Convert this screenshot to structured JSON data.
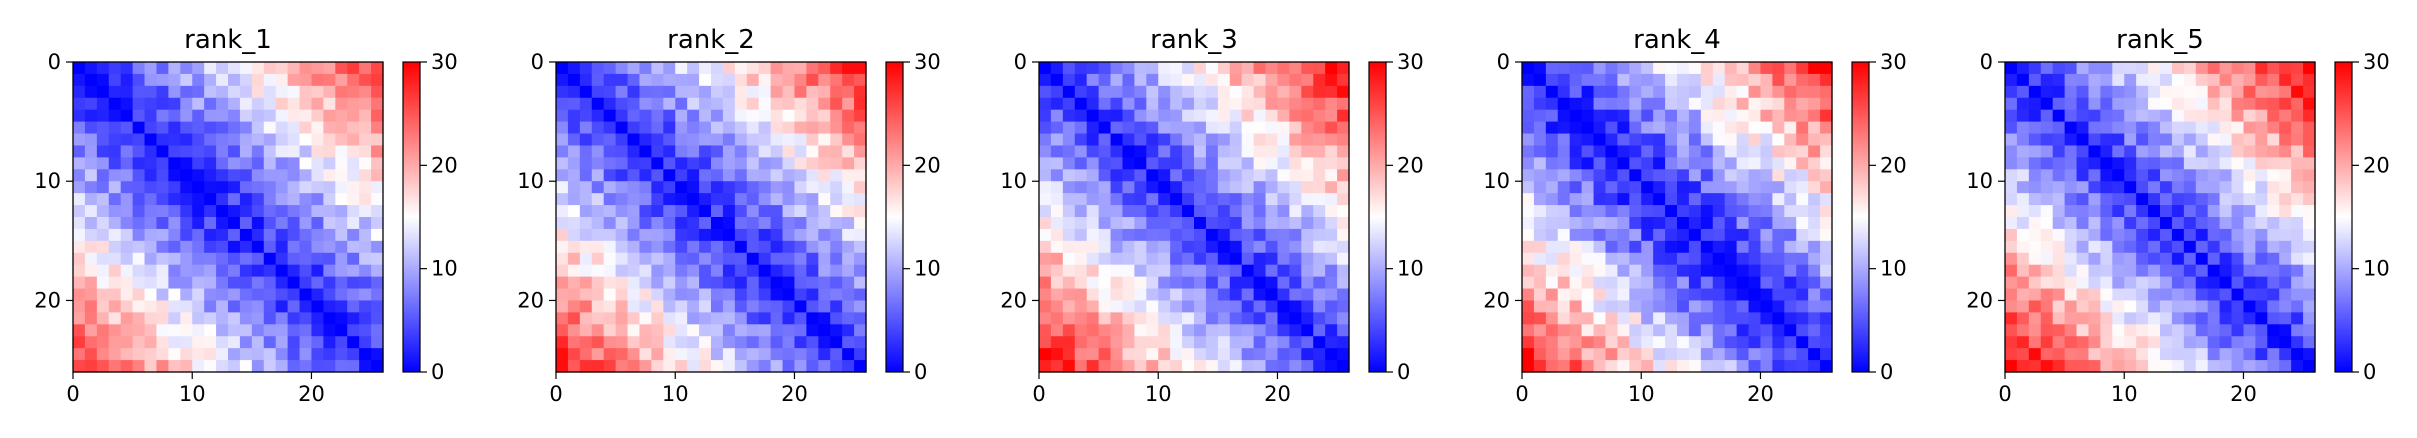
{
  "figure": {
    "colormap": {
      "low": "#0000ff",
      "mid": "#ffffff",
      "high": "#ff0000"
    }
  },
  "chart_data": [
    {
      "type": "heatmap",
      "title": "rank_1",
      "size": 26,
      "vmin": 0,
      "vmax": 30,
      "x_ticks": [
        0,
        10,
        20
      ],
      "y_ticks": [
        0,
        10,
        20
      ],
      "colorbar_ticks": [
        0,
        10,
        20,
        30
      ],
      "colorbar_tick_labels": [
        "0",
        "10",
        "20",
        "30"
      ],
      "value_model": {
        "base": 2,
        "scale": 25,
        "power": 1.1,
        "noise": 3,
        "seed": 11
      }
    },
    {
      "type": "heatmap",
      "title": "rank_2",
      "size": 26,
      "vmin": 0,
      "vmax": 30,
      "x_ticks": [
        0,
        10,
        20
      ],
      "y_ticks": [
        0,
        10,
        20
      ],
      "colorbar_ticks": [
        0,
        10,
        20,
        30
      ],
      "colorbar_tick_labels": [
        "0",
        "10",
        "20",
        "30"
      ],
      "value_model": {
        "base": 2,
        "scale": 26,
        "power": 1.05,
        "noise": 3,
        "seed": 23
      }
    },
    {
      "type": "heatmap",
      "title": "rank_3",
      "size": 26,
      "vmin": 0,
      "vmax": 30,
      "x_ticks": [
        0,
        10,
        20
      ],
      "y_ticks": [
        0,
        10,
        20
      ],
      "colorbar_ticks": [
        0,
        10,
        20,
        30
      ],
      "colorbar_tick_labels": [
        "0",
        "10",
        "20",
        "30"
      ],
      "value_model": {
        "base": 2,
        "scale": 27,
        "power": 1.0,
        "noise": 3,
        "seed": 37
      }
    },
    {
      "type": "heatmap",
      "title": "rank_4",
      "size": 26,
      "vmin": 0,
      "vmax": 30,
      "x_ticks": [
        0,
        10,
        20
      ],
      "y_ticks": [
        0,
        10,
        20
      ],
      "colorbar_ticks": [
        0,
        10,
        20,
        30
      ],
      "colorbar_tick_labels": [
        "0",
        "10",
        "20",
        "30"
      ],
      "value_model": {
        "base": 1.5,
        "scale": 27,
        "power": 1.1,
        "noise": 3.5,
        "seed": 51
      }
    },
    {
      "type": "heatmap",
      "title": "rank_5",
      "size": 26,
      "vmin": 0,
      "vmax": 30,
      "x_ticks": [
        0,
        10,
        20
      ],
      "y_ticks": [
        0,
        10,
        20
      ],
      "colorbar_ticks": [
        0,
        10,
        20,
        30
      ],
      "colorbar_tick_labels": [
        "0",
        "10",
        "20",
        "30"
      ],
      "value_model": {
        "base": 2,
        "scale": 28,
        "power": 1.0,
        "noise": 3,
        "seed": 67
      }
    }
  ]
}
